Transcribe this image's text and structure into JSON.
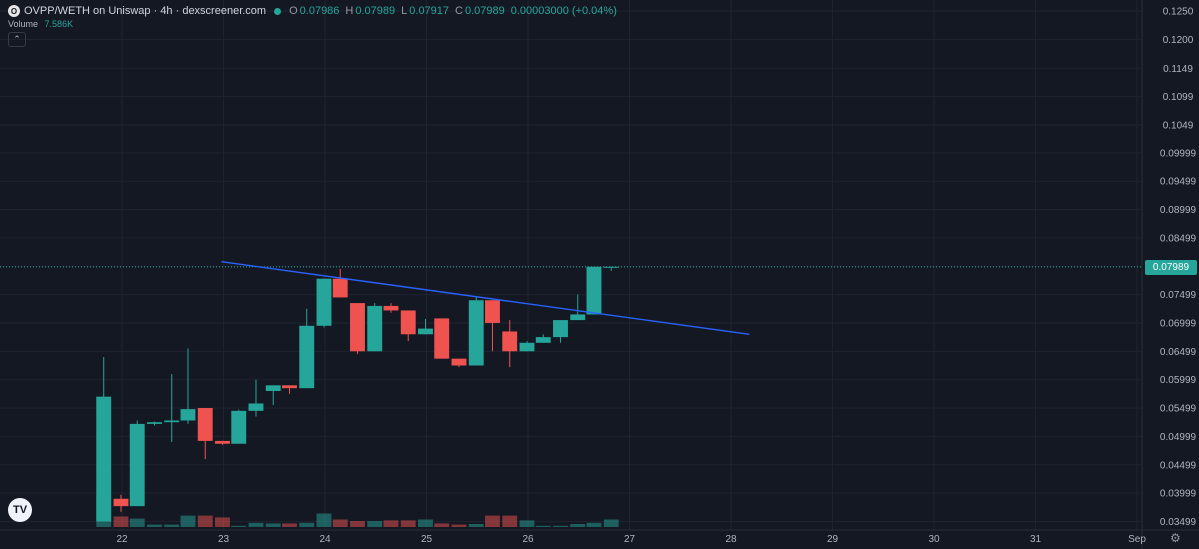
{
  "header": {
    "logo_letter": "O",
    "title": "OVPP/WETH on Uniswap · 4h · dexscreener.com",
    "o_key": "O",
    "o_val": "0.07986",
    "h_key": "H",
    "h_val": "0.07989",
    "l_key": "L",
    "l_val": "0.07917",
    "c_key": "C",
    "c_val": "0.07989",
    "change": "0.00003000 (+0.04%)"
  },
  "collapse_icon": "chevron-up",
  "volume": {
    "label": "Volume",
    "value": "7.586K"
  },
  "tv_logo_text": "TV",
  "last_price_tag": "0.07989",
  "settings_icon": "gear-icon",
  "colors": {
    "bg": "#141823",
    "up": "#26a69a",
    "down": "#ef5350",
    "trendline": "#2962ff",
    "grid": "#1f2330"
  },
  "chart_data": {
    "type": "candlestick",
    "title": "OVPP/WETH on Uniswap · 4h · dexscreener.com",
    "y_ticks": [
      "0.1250",
      "0.1200",
      "0.1149",
      "0.1099",
      "0.1049",
      "0.09999",
      "0.09499",
      "0.08999",
      "0.08499",
      "0.07999",
      "0.07499",
      "0.06999",
      "0.06499",
      "0.05999",
      "0.05499",
      "0.04999",
      "0.04499",
      "0.03999",
      "0.03499"
    ],
    "x_ticks": [
      {
        "label": "22",
        "day": 22
      },
      {
        "label": "23",
        "day": 23
      },
      {
        "label": "24",
        "day": 24
      },
      {
        "label": "25",
        "day": 25
      },
      {
        "label": "26",
        "day": 26
      },
      {
        "label": "27",
        "day": 27
      },
      {
        "label": "28",
        "day": 28
      },
      {
        "label": "29",
        "day": 29
      },
      {
        "label": "30",
        "day": 30
      },
      {
        "label": "31",
        "day": 31
      },
      {
        "label": "Sep",
        "day": 32
      }
    ],
    "ylim": [
      0.033,
      0.126
    ],
    "grid": true,
    "candle_interval_days": 0.1667,
    "candles": [
      {
        "t": 21.82,
        "o": 0.035,
        "h": 0.064,
        "l": 0.035,
        "c": 0.057
      },
      {
        "t": 21.99,
        "o": 0.039,
        "h": 0.0397,
        "l": 0.0367,
        "c": 0.0377
      },
      {
        "t": 22.15,
        "o": 0.0377,
        "h": 0.0528,
        "l": 0.0377,
        "c": 0.0522
      },
      {
        "t": 22.32,
        "o": 0.0522,
        "h": 0.0526,
        "l": 0.0519,
        "c": 0.0525
      },
      {
        "t": 22.49,
        "o": 0.0525,
        "h": 0.061,
        "l": 0.049,
        "c": 0.0528
      },
      {
        "t": 22.65,
        "o": 0.0528,
        "h": 0.0655,
        "l": 0.0522,
        "c": 0.0548
      },
      {
        "t": 22.82,
        "o": 0.055,
        "h": 0.055,
        "l": 0.046,
        "c": 0.0492
      },
      {
        "t": 22.99,
        "o": 0.0492,
        "h": 0.0492,
        "l": 0.0485,
        "c": 0.0487
      },
      {
        "t": 23.15,
        "o": 0.0487,
        "h": 0.0547,
        "l": 0.0487,
        "c": 0.0545
      },
      {
        "t": 23.32,
        "o": 0.0545,
        "h": 0.06,
        "l": 0.0535,
        "c": 0.0558
      },
      {
        "t": 23.49,
        "o": 0.058,
        "h": 0.059,
        "l": 0.0555,
        "c": 0.059
      },
      {
        "t": 23.65,
        "o": 0.059,
        "h": 0.059,
        "l": 0.0575,
        "c": 0.0585
      },
      {
        "t": 23.82,
        "o": 0.0585,
        "h": 0.0725,
        "l": 0.0585,
        "c": 0.0695
      },
      {
        "t": 23.99,
        "o": 0.0695,
        "h": 0.0778,
        "l": 0.0692,
        "c": 0.0778
      },
      {
        "t": 24.15,
        "o": 0.0778,
        "h": 0.0795,
        "l": 0.0745,
        "c": 0.0745
      },
      {
        "t": 24.32,
        "o": 0.0735,
        "h": 0.0735,
        "l": 0.0645,
        "c": 0.065
      },
      {
        "t": 24.49,
        "o": 0.065,
        "h": 0.0735,
        "l": 0.065,
        "c": 0.073
      },
      {
        "t": 24.65,
        "o": 0.073,
        "h": 0.0735,
        "l": 0.0718,
        "c": 0.0722
      },
      {
        "t": 24.82,
        "o": 0.0722,
        "h": 0.0722,
        "l": 0.0668,
        "c": 0.068
      },
      {
        "t": 24.99,
        "o": 0.068,
        "h": 0.0707,
        "l": 0.068,
        "c": 0.069
      },
      {
        "t": 25.15,
        "o": 0.0708,
        "h": 0.0708,
        "l": 0.0637,
        "c": 0.0637
      },
      {
        "t": 25.32,
        "o": 0.0637,
        "h": 0.0637,
        "l": 0.0622,
        "c": 0.0625
      },
      {
        "t": 25.49,
        "o": 0.0625,
        "h": 0.0745,
        "l": 0.0625,
        "c": 0.074
      },
      {
        "t": 25.65,
        "o": 0.074,
        "h": 0.074,
        "l": 0.065,
        "c": 0.07
      },
      {
        "t": 25.82,
        "o": 0.0685,
        "h": 0.0705,
        "l": 0.0622,
        "c": 0.065
      },
      {
        "t": 25.99,
        "o": 0.065,
        "h": 0.0668,
        "l": 0.065,
        "c": 0.0665
      },
      {
        "t": 26.15,
        "o": 0.0665,
        "h": 0.068,
        "l": 0.0665,
        "c": 0.0675
      },
      {
        "t": 26.32,
        "o": 0.0675,
        "h": 0.0705,
        "l": 0.0665,
        "c": 0.0705
      },
      {
        "t": 26.49,
        "o": 0.0705,
        "h": 0.075,
        "l": 0.0705,
        "c": 0.0715
      },
      {
        "t": 26.65,
        "o": 0.0715,
        "h": 0.0799,
        "l": 0.0715,
        "c": 0.0799
      },
      {
        "t": 26.82,
        "o": 0.07986,
        "h": 0.07989,
        "l": 0.07917,
        "c": 0.07989
      }
    ],
    "volume_rel": [
      1.0,
      0.35,
      0.28,
      0.08,
      0.08,
      0.38,
      0.38,
      0.32,
      0.04,
      0.14,
      0.12,
      0.12,
      0.14,
      0.45,
      0.25,
      0.2,
      0.2,
      0.22,
      0.22,
      0.25,
      0.12,
      0.08,
      0.1,
      0.38,
      0.38,
      0.22,
      0.04,
      0.04,
      0.1,
      0.14,
      0.25
    ],
    "trendline": {
      "x1": 22.98,
      "y1": 0.0808,
      "x2": 28.18,
      "y2": 0.068
    },
    "last_price": 0.07989
  }
}
